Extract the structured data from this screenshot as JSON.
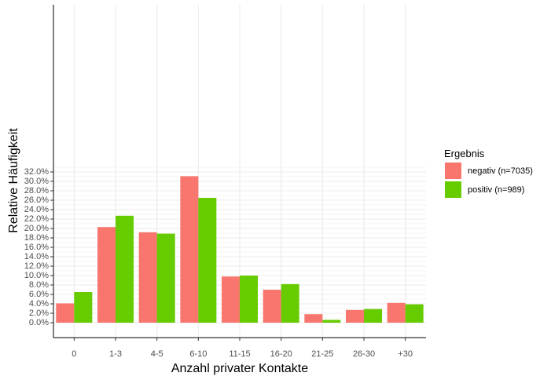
{
  "chart_data": {
    "type": "bar",
    "xlabel": "Anzahl privater Kontakte",
    "ylabel": "Relative Häufigkeit",
    "categories": [
      "0",
      "1-3",
      "4-5",
      "6-10",
      "11-15",
      "16-20",
      "21-25",
      "26-30",
      "+30"
    ],
    "yticks": [
      "0.0%",
      "2.0%",
      "4.0%",
      "6.0%",
      "8.0%",
      "10.0%",
      "12.0%",
      "14.0%",
      "16.0%",
      "18.0%",
      "20.0%",
      "22.0%",
      "24.0%",
      "26.0%",
      "28.0%",
      "30.0%",
      "32.0%"
    ],
    "ylim": [
      0,
      33
    ],
    "grid": true,
    "legend_title": "Ergebnis",
    "legend_position": "right",
    "series": [
      {
        "name": "negativ (n=7035)",
        "color": "#F8766D",
        "values": [
          4.1,
          20.3,
          19.2,
          31.1,
          9.8,
          7.0,
          1.8,
          2.7,
          4.2
        ]
      },
      {
        "name": "positiv (n=989)",
        "color": "#66CC00",
        "values": [
          6.5,
          22.7,
          18.9,
          26.5,
          10.0,
          8.2,
          0.6,
          2.9,
          3.9
        ]
      }
    ]
  }
}
